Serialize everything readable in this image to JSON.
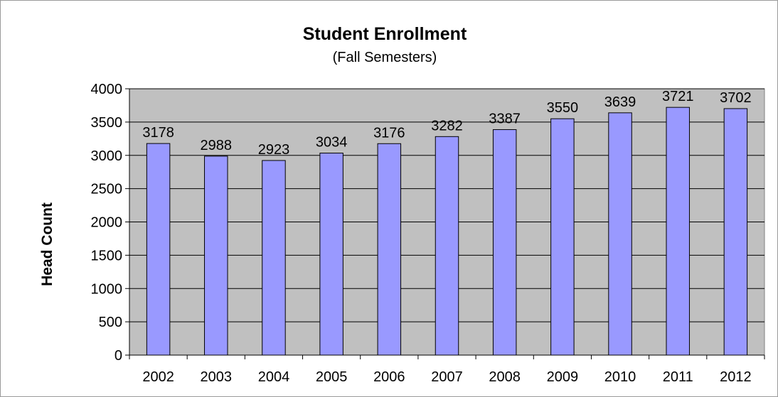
{
  "chart_data": {
    "type": "bar",
    "title": "Student Enrollment",
    "subtitle": "(Fall Semesters)",
    "xlabel": "",
    "ylabel": "Head Count",
    "categories": [
      "2002",
      "2003",
      "2004",
      "2005",
      "2006",
      "2007",
      "2008",
      "2009",
      "2010",
      "2011",
      "2012"
    ],
    "values": [
      3178,
      2988,
      2923,
      3034,
      3176,
      3282,
      3387,
      3550,
      3639,
      3721,
      3702
    ],
    "ylim": [
      0,
      4000
    ],
    "yticks": [
      "0",
      "500",
      "1000",
      "1500",
      "2000",
      "2500",
      "3000",
      "3500",
      "4000"
    ],
    "grid": true,
    "legend": "none",
    "colors": {
      "bar_fill": "#9999ff",
      "bar_stroke": "#000000",
      "plot_background": "#c0c0c0",
      "gridline": "#000000"
    }
  }
}
